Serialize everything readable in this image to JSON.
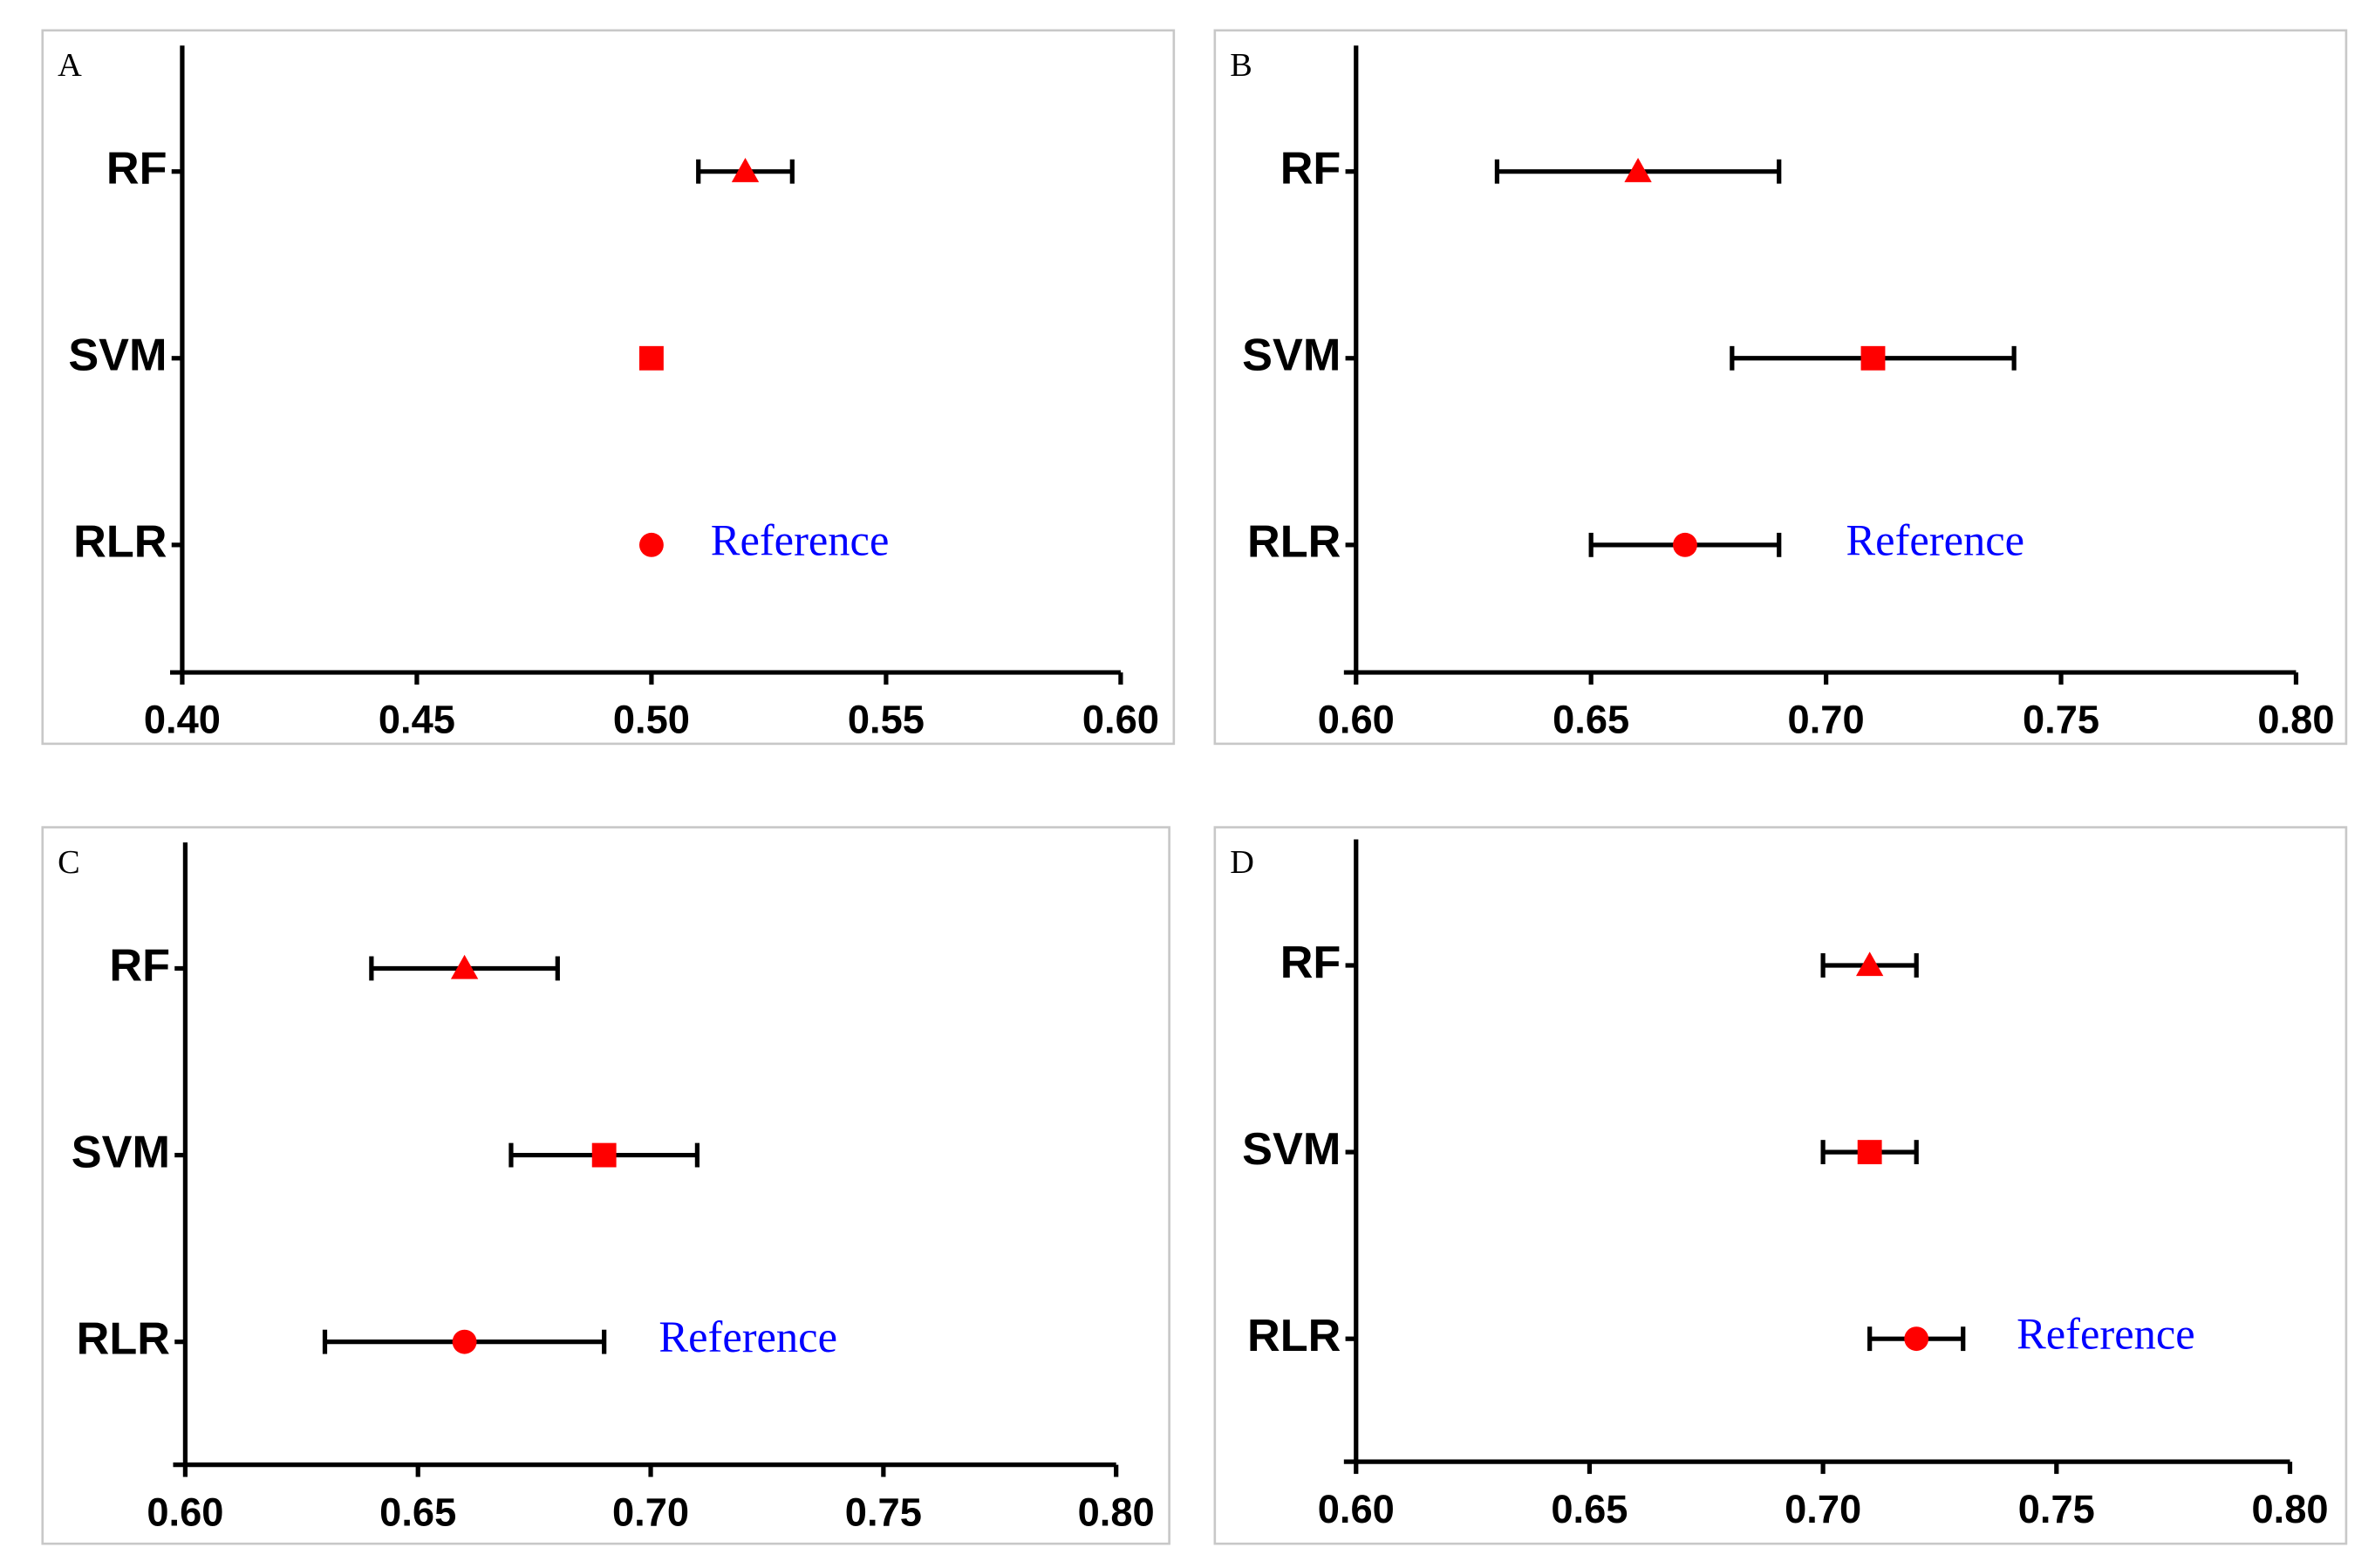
{
  "chart_data": [
    {
      "type": "forest",
      "panel": "A",
      "categories": [
        "RF",
        "SVM",
        "RLR"
      ],
      "markers": [
        "triangle",
        "square",
        "circle"
      ],
      "color": "#ff0000",
      "values": [
        0.52,
        0.5,
        0.5
      ],
      "lower": [
        0.51,
        null,
        null
      ],
      "upper": [
        0.53,
        null,
        null
      ],
      "annotation": "Reference",
      "xlim": [
        0.4,
        0.6
      ],
      "xticks": [
        {
          "value": 0.4,
          "label": "0.40"
        },
        {
          "value": 0.45,
          "label": "0.45"
        },
        {
          "value": 0.5,
          "label": "0.50"
        },
        {
          "value": 0.55,
          "label": "0.55"
        },
        {
          "value": 0.6,
          "label": "0.60"
        }
      ]
    },
    {
      "type": "forest",
      "panel": "B",
      "categories": [
        "RF",
        "SVM",
        "RLR"
      ],
      "markers": [
        "triangle",
        "square",
        "circle"
      ],
      "color": "#ff0000",
      "values": [
        0.66,
        0.71,
        0.67
      ],
      "lower": [
        0.63,
        0.68,
        0.65
      ],
      "upper": [
        0.69,
        0.74,
        0.69
      ],
      "annotation": "Reference",
      "xlim": [
        0.6,
        0.8
      ],
      "xticks": [
        {
          "value": 0.6,
          "label": "0.60"
        },
        0.65,
        {
          "value": 0.7,
          "label": "0.70"
        },
        0.75,
        {
          "value": 0.8,
          "label": "0.80"
        }
      ]
    },
    {
      "type": "forest",
      "panel": "C",
      "categories": [
        "RF",
        "SVM",
        "RLR"
      ],
      "markers": [
        "triangle",
        "square",
        "circle"
      ],
      "color": "#ff0000",
      "values": [
        0.66,
        0.69,
        0.66
      ],
      "lower": [
        0.64,
        0.67,
        0.63
      ],
      "upper": [
        0.68,
        0.71,
        0.69
      ],
      "annotation": "Reference",
      "xlim": [
        0.6,
        0.8
      ],
      "xticks": [
        {
          "value": 0.6,
          "label": "0.60"
        },
        0.65,
        {
          "value": 0.7,
          "label": "0.70"
        },
        0.75,
        {
          "value": 0.8,
          "label": "0.80"
        }
      ]
    },
    {
      "type": "forest",
      "panel": "D",
      "categories": [
        "RF",
        "SVM",
        "RLR"
      ],
      "markers": [
        "triangle",
        "square",
        "circle"
      ],
      "color": "#ff0000",
      "values": [
        0.71,
        0.71,
        0.72
      ],
      "lower": [
        0.7,
        0.7,
        0.71
      ],
      "upper": [
        0.72,
        0.72,
        0.73
      ],
      "annotation": "Reference",
      "xlim": [
        0.6,
        0.8
      ],
      "xticks": [
        {
          "value": 0.6,
          "label": "0.60"
        },
        0.65,
        {
          "value": 0.7,
          "label": "0.70"
        },
        0.75,
        {
          "value": 0.8,
          "label": "0.80"
        }
      ]
    }
  ]
}
